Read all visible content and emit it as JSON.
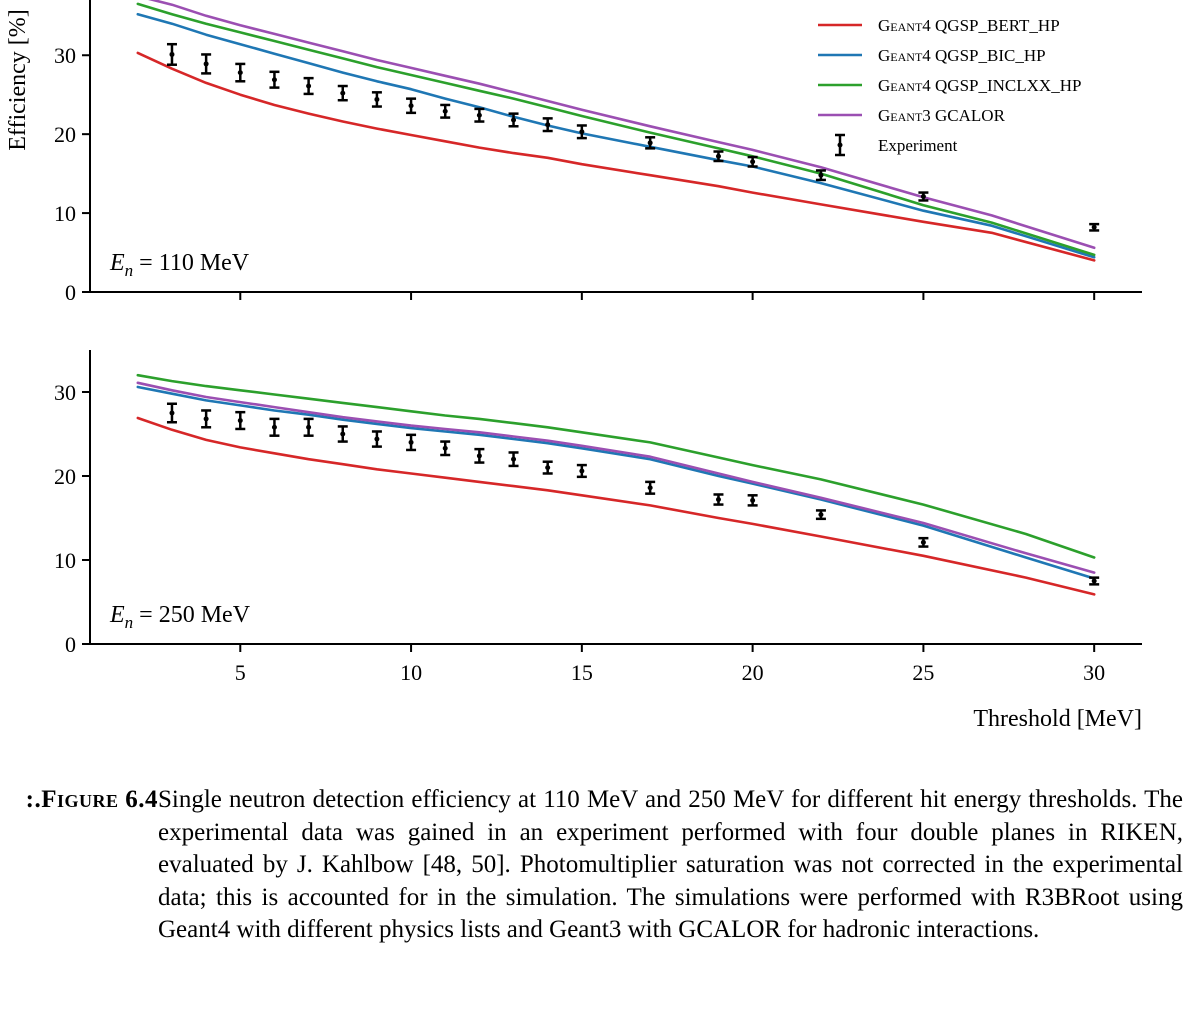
{
  "chart_data": [
    {
      "type": "line",
      "annotation": "E_n = 110 MeV",
      "annotation_parts": {
        "symbol": "E",
        "subscript": "n",
        "rest": " = 110 MeV"
      },
      "ylabel": "Efficiency [%]",
      "xlabel": "",
      "xlim": [
        0.6,
        31.4
      ],
      "ylim": [
        0,
        37
      ],
      "yticks": [
        "0",
        "10",
        "20",
        "30"
      ],
      "xticks": [
        5,
        10,
        15,
        20,
        25,
        30
      ],
      "xtick_labels_shown": false,
      "grid": false,
      "legend": "top-right",
      "series": [
        {
          "name": "QGSP_BERT_HP",
          "engine": "Geant4",
          "color": "#d62728",
          "x": [
            2,
            3,
            4,
            5,
            6,
            7,
            8,
            9,
            10,
            11,
            12,
            13,
            14,
            15,
            17,
            19,
            20,
            22,
            25,
            27,
            30
          ],
          "y": [
            30.3,
            28.3,
            26.5,
            25.0,
            23.7,
            22.6,
            21.6,
            20.7,
            19.9,
            19.1,
            18.3,
            17.6,
            17.0,
            16.2,
            14.8,
            13.4,
            12.6,
            11.1,
            8.9,
            7.5,
            4.0
          ]
        },
        {
          "name": "QGSP_BIC_HP",
          "engine": "Geant4",
          "color": "#1f77b4",
          "x": [
            2,
            3,
            4,
            5,
            6,
            7,
            8,
            9,
            10,
            11,
            12,
            13,
            14,
            15,
            17,
            19,
            20,
            22,
            25,
            27,
            30
          ],
          "y": [
            35.2,
            34.0,
            32.6,
            31.4,
            30.2,
            29.0,
            27.8,
            26.7,
            25.7,
            24.5,
            23.4,
            22.2,
            21.1,
            20.1,
            18.4,
            16.7,
            15.9,
            13.8,
            10.3,
            8.4,
            4.4
          ]
        },
        {
          "name": "QGSP_INCLXX_HP",
          "engine": "Geant4",
          "color": "#2ca02c",
          "x": [
            2,
            3,
            4,
            5,
            6,
            7,
            8,
            9,
            10,
            11,
            12,
            13,
            14,
            15,
            17,
            19,
            20,
            22,
            25,
            27,
            30
          ],
          "y": [
            36.5,
            35.2,
            34.0,
            32.9,
            31.8,
            30.7,
            29.6,
            28.5,
            27.5,
            26.5,
            25.5,
            24.5,
            23.4,
            22.3,
            20.2,
            18.2,
            17.2,
            15.0,
            11.0,
            8.8,
            4.7
          ]
        },
        {
          "name": "GCALOR",
          "engine": "Geant3",
          "color": "#9b4fb2",
          "x": [
            2,
            3,
            4,
            5,
            6,
            7,
            8,
            9,
            10,
            11,
            12,
            13,
            14,
            15,
            17,
            19,
            20,
            22,
            25,
            27,
            30
          ],
          "y": [
            37.5,
            36.4,
            35.0,
            33.8,
            32.7,
            31.6,
            30.5,
            29.4,
            28.4,
            27.4,
            26.4,
            25.3,
            24.2,
            23.1,
            21.0,
            19.0,
            18.0,
            15.8,
            12.0,
            9.7,
            5.6
          ]
        },
        {
          "name": "Experiment",
          "style": "errorbar",
          "color": "#000000",
          "x": [
            3,
            4,
            5,
            6,
            7,
            8,
            9,
            10,
            11,
            12,
            13,
            14,
            15,
            17,
            19,
            20,
            22,
            25,
            30
          ],
          "y": [
            30.1,
            28.9,
            27.8,
            26.9,
            26.1,
            25.2,
            24.4,
            23.6,
            22.9,
            22.4,
            21.8,
            21.2,
            20.3,
            18.9,
            17.2,
            16.5,
            14.8,
            12.1,
            8.2
          ],
          "yerr": [
            1.3,
            1.2,
            1.1,
            1.0,
            1.0,
            0.9,
            0.9,
            0.9,
            0.8,
            0.8,
            0.8,
            0.8,
            0.8,
            0.7,
            0.6,
            0.6,
            0.6,
            0.5,
            0.4
          ]
        }
      ]
    },
    {
      "type": "line",
      "annotation": "E_n = 250 MeV",
      "annotation_parts": {
        "symbol": "E",
        "subscript": "n",
        "rest": " = 250 MeV"
      },
      "ylabel": "",
      "xlabel": "Threshold [MeV]",
      "xlim": [
        0.6,
        31.4
      ],
      "ylim": [
        0,
        35
      ],
      "yticks": [
        "0",
        "10",
        "20",
        "30"
      ],
      "xticks": [
        5,
        10,
        15,
        20,
        25,
        30
      ],
      "xtick_labels_shown": true,
      "grid": false,
      "series": [
        {
          "name": "QGSP_BERT_HP",
          "engine": "Geant4",
          "color": "#d62728",
          "x": [
            2,
            3,
            4,
            5,
            6,
            7,
            8,
            9,
            10,
            11,
            12,
            13,
            14,
            15,
            17,
            19,
            20,
            22,
            25,
            28,
            30
          ],
          "y": [
            26.9,
            25.5,
            24.3,
            23.4,
            22.7,
            22.0,
            21.4,
            20.8,
            20.3,
            19.8,
            19.3,
            18.8,
            18.3,
            17.7,
            16.5,
            15.0,
            14.3,
            12.8,
            10.5,
            7.9,
            5.9
          ]
        },
        {
          "name": "QGSP_BIC_HP",
          "engine": "Geant4",
          "color": "#1f77b4",
          "x": [
            2,
            3,
            4,
            5,
            6,
            7,
            8,
            9,
            10,
            11,
            12,
            13,
            14,
            15,
            17,
            19,
            20,
            22,
            25,
            28,
            30
          ],
          "y": [
            30.6,
            29.8,
            29.0,
            28.4,
            27.8,
            27.3,
            26.7,
            26.2,
            25.7,
            25.3,
            24.9,
            24.4,
            23.9,
            23.3,
            22.0,
            20.0,
            19.1,
            17.2,
            14.1,
            10.3,
            7.8
          ]
        },
        {
          "name": "QGSP_INCLXX_HP",
          "engine": "Geant4",
          "color": "#2ca02c",
          "x": [
            2,
            3,
            4,
            5,
            6,
            7,
            8,
            9,
            10,
            11,
            12,
            13,
            14,
            15,
            17,
            19,
            20,
            22,
            25,
            28,
            30
          ],
          "y": [
            32.0,
            31.3,
            30.7,
            30.2,
            29.7,
            29.2,
            28.7,
            28.2,
            27.7,
            27.2,
            26.8,
            26.3,
            25.8,
            25.2,
            24.0,
            22.2,
            21.3,
            19.6,
            16.6,
            13.1,
            10.3
          ]
        },
        {
          "name": "GCALOR",
          "engine": "Geant3",
          "color": "#9b4fb2",
          "x": [
            2,
            3,
            4,
            5,
            6,
            7,
            8,
            9,
            10,
            11,
            12,
            13,
            14,
            15,
            17,
            19,
            20,
            22,
            25,
            28,
            30
          ],
          "y": [
            31.1,
            30.2,
            29.4,
            28.8,
            28.2,
            27.6,
            27.0,
            26.5,
            26.0,
            25.6,
            25.2,
            24.7,
            24.2,
            23.6,
            22.3,
            20.3,
            19.3,
            17.4,
            14.4,
            10.8,
            8.5
          ]
        },
        {
          "name": "Experiment",
          "style": "errorbar",
          "color": "#000000",
          "x": [
            3,
            4,
            5,
            6,
            7,
            8,
            9,
            10,
            11,
            12,
            13,
            14,
            15,
            17,
            19,
            20,
            22,
            25,
            30
          ],
          "y": [
            27.5,
            26.8,
            26.6,
            25.8,
            25.8,
            25.0,
            24.4,
            24.0,
            23.3,
            22.4,
            22.0,
            21.0,
            20.6,
            18.6,
            17.2,
            17.1,
            15.4,
            12.1,
            7.5
          ],
          "yerr": [
            1.1,
            1.0,
            1.0,
            1.0,
            1.0,
            0.9,
            0.9,
            0.9,
            0.8,
            0.8,
            0.8,
            0.7,
            0.7,
            0.7,
            0.6,
            0.6,
            0.5,
            0.5,
            0.4
          ]
        }
      ]
    }
  ],
  "caption": {
    "label": "Figure 6.4.:",
    "text": "Single neutron detection efficiency at 110 MeV and 250 MeV for different hit energy thresholds. The experimental data was gained in an experiment performed with four double planes in RIKEN, evaluated by J. Kahlbow [48, 50]. Photomultiplier saturation was not corrected in the experimental data; this is accounted for in the simulation. The simulations were performed with R3BRoot using Geant4 with different physics lists and Geant3 with GCALOR for hadronic interactions."
  }
}
